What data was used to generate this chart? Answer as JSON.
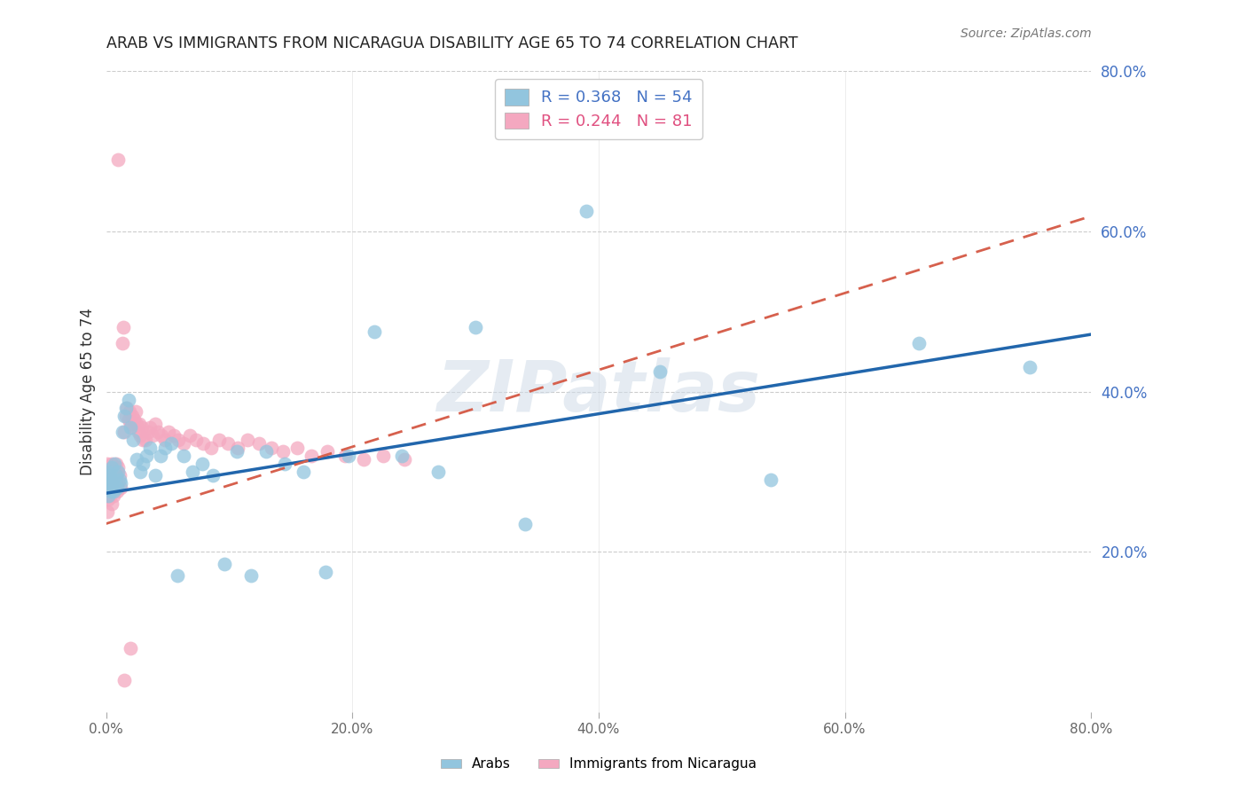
{
  "title": "ARAB VS IMMIGRANTS FROM NICARAGUA DISABILITY AGE 65 TO 74 CORRELATION CHART",
  "source": "Source: ZipAtlas.com",
  "ylabel": "Disability Age 65 to 74",
  "xlim": [
    0.0,
    0.8
  ],
  "ylim": [
    0.0,
    0.8
  ],
  "arab_color": "#92c5de",
  "nicaragua_color": "#f4a8c0",
  "arab_line_color": "#2166ac",
  "nicaragua_line_color": "#d6604d",
  "watermark_text": "ZIPatlas",
  "arab_R": 0.368,
  "arab_N": 54,
  "nicaragua_R": 0.244,
  "nicaragua_N": 81,
  "arab_legend_color": "#4472c4",
  "nicaragua_legend_color": "#e05080",
  "right_axis_color": "#4472c4",
  "grid_color": "#cccccc",
  "arab_points_x": [
    0.001,
    0.001,
    0.002,
    0.002,
    0.003,
    0.003,
    0.004,
    0.005,
    0.005,
    0.006,
    0.007,
    0.008,
    0.009,
    0.01,
    0.011,
    0.012,
    0.013,
    0.015,
    0.016,
    0.018,
    0.02,
    0.022,
    0.025,
    0.028,
    0.03,
    0.033,
    0.036,
    0.04,
    0.044,
    0.048,
    0.053,
    0.058,
    0.063,
    0.07,
    0.078,
    0.087,
    0.096,
    0.106,
    0.118,
    0.13,
    0.145,
    0.16,
    0.178,
    0.197,
    0.218,
    0.24,
    0.27,
    0.3,
    0.34,
    0.39,
    0.45,
    0.54,
    0.66,
    0.75
  ],
  "arab_points_y": [
    0.285,
    0.3,
    0.27,
    0.29,
    0.28,
    0.295,
    0.275,
    0.285,
    0.305,
    0.275,
    0.31,
    0.295,
    0.28,
    0.3,
    0.29,
    0.285,
    0.35,
    0.37,
    0.38,
    0.39,
    0.355,
    0.34,
    0.315,
    0.3,
    0.31,
    0.32,
    0.33,
    0.295,
    0.32,
    0.33,
    0.335,
    0.17,
    0.32,
    0.3,
    0.31,
    0.295,
    0.185,
    0.325,
    0.17,
    0.325,
    0.31,
    0.3,
    0.175,
    0.32,
    0.475,
    0.32,
    0.3,
    0.48,
    0.235,
    0.625,
    0.425,
    0.29,
    0.46,
    0.43
  ],
  "nicaragua_points_x": [
    0.0,
    0.0,
    0.001,
    0.001,
    0.001,
    0.001,
    0.002,
    0.002,
    0.002,
    0.003,
    0.003,
    0.003,
    0.004,
    0.004,
    0.005,
    0.005,
    0.005,
    0.006,
    0.006,
    0.007,
    0.007,
    0.007,
    0.008,
    0.008,
    0.009,
    0.009,
    0.01,
    0.01,
    0.011,
    0.012,
    0.013,
    0.014,
    0.015,
    0.016,
    0.017,
    0.018,
    0.019,
    0.02,
    0.021,
    0.022,
    0.023,
    0.024,
    0.025,
    0.026,
    0.027,
    0.028,
    0.029,
    0.03,
    0.032,
    0.034,
    0.036,
    0.038,
    0.04,
    0.042,
    0.045,
    0.048,
    0.051,
    0.055,
    0.059,
    0.063,
    0.068,
    0.073,
    0.079,
    0.085,
    0.092,
    0.099,
    0.107,
    0.115,
    0.124,
    0.134,
    0.144,
    0.155,
    0.167,
    0.18,
    0.194,
    0.209,
    0.225,
    0.242,
    0.01,
    0.015,
    0.02
  ],
  "nicaragua_points_y": [
    0.27,
    0.29,
    0.25,
    0.28,
    0.295,
    0.31,
    0.265,
    0.285,
    0.295,
    0.27,
    0.29,
    0.3,
    0.275,
    0.295,
    0.28,
    0.26,
    0.31,
    0.29,
    0.27,
    0.3,
    0.28,
    0.295,
    0.31,
    0.285,
    0.3,
    0.275,
    0.285,
    0.305,
    0.295,
    0.28,
    0.46,
    0.48,
    0.35,
    0.37,
    0.38,
    0.365,
    0.375,
    0.36,
    0.37,
    0.355,
    0.365,
    0.375,
    0.36,
    0.35,
    0.36,
    0.345,
    0.355,
    0.34,
    0.34,
    0.35,
    0.355,
    0.345,
    0.36,
    0.35,
    0.345,
    0.34,
    0.35,
    0.345,
    0.34,
    0.335,
    0.345,
    0.34,
    0.335,
    0.33,
    0.34,
    0.335,
    0.33,
    0.34,
    0.335,
    0.33,
    0.325,
    0.33,
    0.32,
    0.325,
    0.32,
    0.315,
    0.32,
    0.315,
    0.69,
    0.04,
    0.08
  ]
}
